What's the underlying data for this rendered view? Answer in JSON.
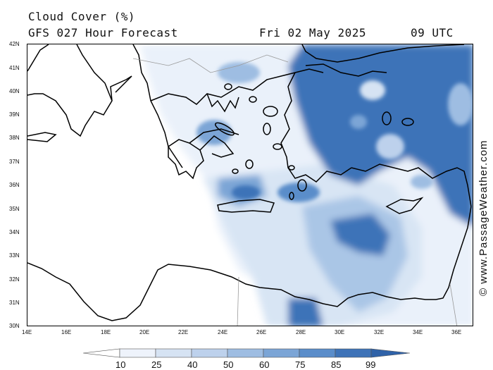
{
  "header": {
    "title": "Cloud Cover (%)",
    "model": "GFS 027 Hour Forecast",
    "date": "Fri 02 May 2025",
    "time": "09 UTC"
  },
  "credit": "© www.PassageWeather.com",
  "axes": {
    "lat_labels": [
      "42N",
      "41N",
      "40N",
      "39N",
      "38N",
      "37N",
      "36N",
      "35N",
      "34N",
      "33N",
      "32N",
      "31N",
      "30N"
    ],
    "lon_labels": [
      "14E",
      "16E",
      "18E",
      "20E",
      "22E",
      "24E",
      "26E",
      "28E",
      "30E",
      "32E",
      "34E",
      "36E"
    ]
  },
  "legend": {
    "levels": [
      "10",
      "25",
      "40",
      "50",
      "60",
      "75",
      "85",
      "99"
    ],
    "colors": [
      "#ffffff",
      "#eef3fb",
      "#d6e3f3",
      "#bdd1ec",
      "#9ebde2",
      "#7ba5d6",
      "#5a8dca",
      "#3e73b8",
      "#2f62a8"
    ]
  },
  "colors": {
    "coast": "#000000",
    "border": "#9a9a9a"
  }
}
